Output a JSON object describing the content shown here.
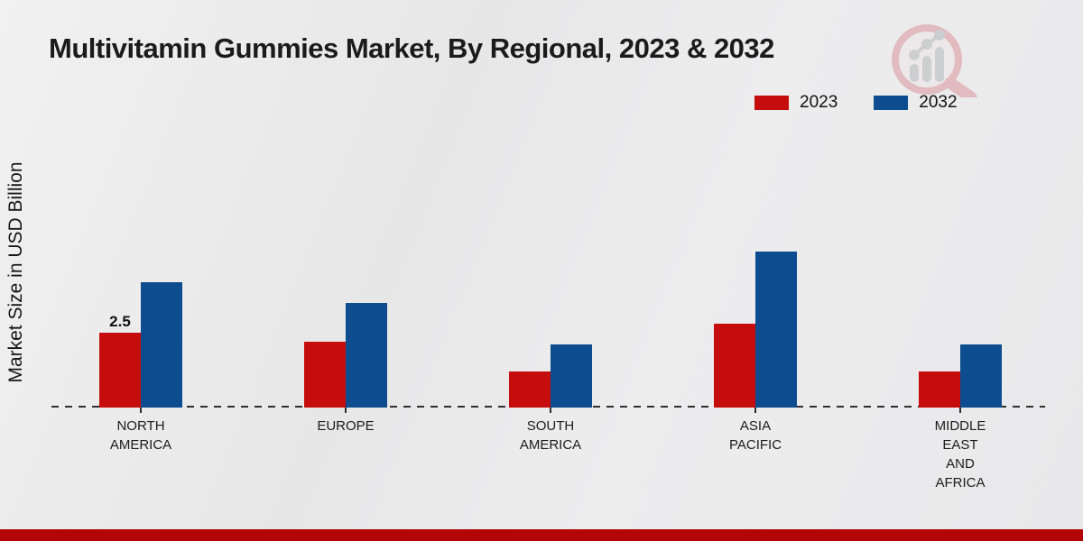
{
  "page": {
    "title": "Multivitamin Gummies Market, By Regional, 2023 & 2032"
  },
  "chart_data": {
    "type": "bar",
    "title": "Multivitamin Gummies Market, By Regional, 2023 & 2032",
    "xlabel": "",
    "ylabel": "Market Size in USD Billion",
    "categories": [
      "NORTH\nAMERICA",
      "EUROPE",
      "SOUTH\nAMERICA",
      "ASIA\nPACIFIC",
      "MIDDLE\nEAST\nAND\nAFRICA"
    ],
    "series": [
      {
        "name": "2023",
        "color": "#c60d0d",
        "values": [
          2.5,
          2.2,
          1.2,
          2.8,
          1.2
        ]
      },
      {
        "name": "2032",
        "color": "#0d4c8e",
        "values": [
          4.2,
          3.5,
          2.1,
          5.2,
          2.1
        ]
      }
    ],
    "annotations": [
      {
        "series": 0,
        "category": 0,
        "text": "2.5"
      }
    ],
    "unit": "USD Billion",
    "ylim": [
      0,
      6
    ],
    "grid": false,
    "legend_position": "top-right",
    "baseline_style": "dashed"
  },
  "colors": {
    "series_2023": "#c60d0d",
    "series_2032": "#0d4c8e",
    "footer_band": "#b30505",
    "background": "#eaeaeb",
    "axis": "#2f2f2f"
  },
  "watermark": {
    "icon": "magnifier-bar-chart-logo-icon"
  }
}
